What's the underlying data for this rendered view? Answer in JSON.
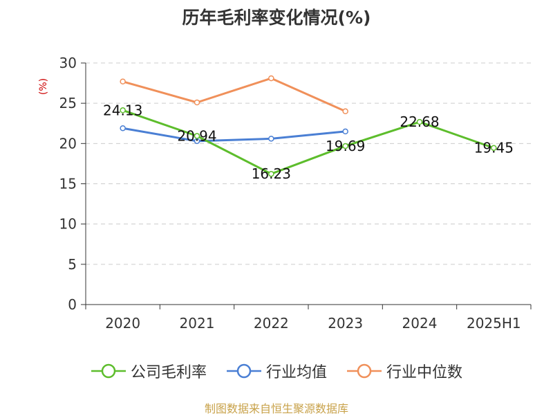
{
  "chart_data": {
    "type": "line",
    "title": "历年毛利率变化情况(%)",
    "ylabel": "(%)",
    "xlabel": "",
    "categories": [
      "2020",
      "2021",
      "2022",
      "2023",
      "2024",
      "2025H1"
    ],
    "ylim": [
      0,
      30
    ],
    "yticks": [
      0,
      5,
      10,
      15,
      20,
      25,
      30
    ],
    "grid": true,
    "legend_position": "bottom",
    "series": [
      {
        "name": "公司毛利率",
        "color": "#5dbd2c",
        "values": [
          24.13,
          20.94,
          16.23,
          19.69,
          22.68,
          19.45
        ],
        "labels": [
          "24.13",
          "20.94",
          "16.23",
          "19.69",
          "22.68",
          "19.45"
        ]
      },
      {
        "name": "行业均值",
        "color": "#4a7fd4",
        "values": [
          21.9,
          20.3,
          20.6,
          21.5,
          null,
          null
        ]
      },
      {
        "name": "行业中位数",
        "color": "#f0905a",
        "values": [
          27.7,
          25.1,
          28.1,
          24.0,
          null,
          null
        ]
      }
    ]
  },
  "footer": {
    "source": "制图数据来自恒生聚源数据库"
  }
}
